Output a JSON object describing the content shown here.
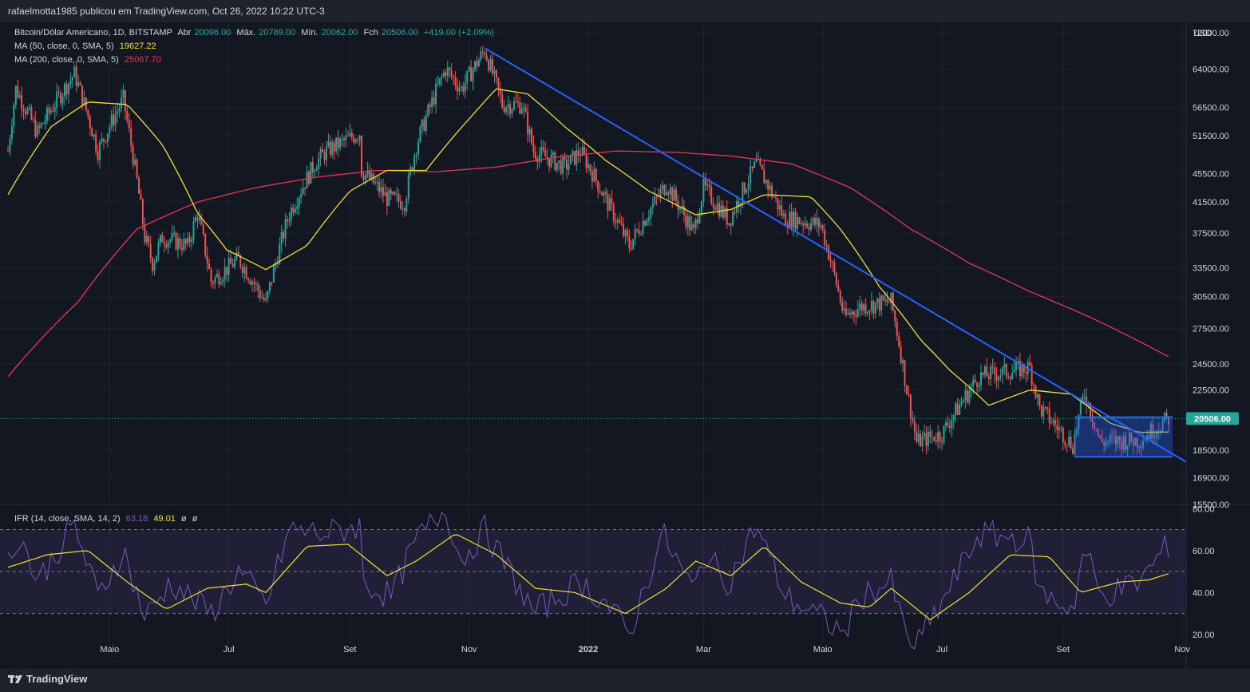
{
  "header": {
    "publisher": "rafaelmotta1985 publicou em TradingView.com, Oct 26, 2022 10:22 UTC-3"
  },
  "legend": {
    "symbol": "Bitcoin/Dólar Americano, 1D, BITSTAMP",
    "open_label": "Abr",
    "open_value": "20096.00",
    "high_label": "Máx.",
    "high_value": "20789.00",
    "low_label": "Mín.",
    "low_value": "20062.00",
    "close_label": "Fch",
    "close_value": "20506.00",
    "change": "+419.00 (+2.09%)",
    "ma50_label": "MA (50, close, 0, SMA, 5)",
    "ma50_value": "19627.22",
    "ma200_label": "MA (200, close, 0, SMA, 5)",
    "ma200_value": "25067.70",
    "rsi_label": "IFR (14, close, SMA, 14, 2)",
    "rsi_value": "63.18",
    "rsi_ma_value": "49.01",
    "rsi_extra1": "ø",
    "rsi_extra2": "ø"
  },
  "footer": {
    "brand": "TradingView"
  },
  "colors": {
    "up": "#26a69a",
    "down": "#ef5350",
    "ma50": "#f0e130",
    "ma200": "#e8384f",
    "trendline": "#2962ff",
    "rsi": "#7e57c2",
    "rsi_ma": "#f0e130",
    "price_tag": "#26a69a"
  },
  "chart_data": [
    {
      "type": "candlestick",
      "title": "Bitcoin/Dólar Americano, 1D, BITSTAMP",
      "y_unit": "USD",
      "y_scale": "log",
      "ylim": [
        15500,
        74500
      ],
      "y_ticks": [
        "72000.00",
        "64000.00",
        "56500.00",
        "51500.00",
        "45500.00",
        "41500.00",
        "37500.00",
        "33500.00",
        "30500.00",
        "27500.00",
        "24500.00",
        "22500.00",
        "18500.00",
        "16900.00",
        "15500.00"
      ],
      "x_ticks": [
        "Maio",
        "Jul",
        "Set",
        "Nov",
        "2022",
        "Mar",
        "Maio",
        "Jul",
        "Set",
        "Nov"
      ],
      "x_tick_dates": [
        "2021-05-01",
        "2021-07-01",
        "2021-09-01",
        "2021-11-01",
        "2022-01-01",
        "2022-03-01",
        "2022-05-01",
        "2022-07-01",
        "2022-09-01",
        "2022-11-01"
      ],
      "x_range": [
        "2021-03-10",
        "2022-11-03"
      ],
      "last_price": "20506.00",
      "price_keypoints": [
        [
          "2021-03-10",
          49000
        ],
        [
          "2021-03-14",
          60000
        ],
        [
          "2021-03-25",
          52000
        ],
        [
          "2021-04-13",
          63000
        ],
        [
          "2021-04-25",
          49000
        ],
        [
          "2021-05-08",
          58000
        ],
        [
          "2021-05-12",
          50000
        ],
        [
          "2021-05-19",
          37000
        ],
        [
          "2021-05-23",
          34000
        ],
        [
          "2021-05-28",
          37000
        ],
        [
          "2021-06-10",
          36000
        ],
        [
          "2021-06-15",
          40000
        ],
        [
          "2021-06-22",
          32000
        ],
        [
          "2021-07-06",
          34500
        ],
        [
          "2021-07-20",
          29800
        ],
        [
          "2021-08-01",
          40000
        ],
        [
          "2021-08-14",
          47000
        ],
        [
          "2021-08-20",
          49000
        ],
        [
          "2021-09-06",
          52000
        ],
        [
          "2021-09-07",
          46000
        ],
        [
          "2021-09-20",
          42000
        ],
        [
          "2021-09-29",
          41500
        ],
        [
          "2021-10-05",
          50000
        ],
        [
          "2021-10-20",
          64000
        ],
        [
          "2021-10-28",
          60000
        ],
        [
          "2021-11-09",
          68000
        ],
        [
          "2021-11-18",
          57000
        ],
        [
          "2021-11-28",
          57000
        ],
        [
          "2021-12-04",
          49000
        ],
        [
          "2021-12-20",
          46500
        ],
        [
          "2021-12-28",
          49000
        ],
        [
          "2022-01-10",
          41800
        ],
        [
          "2022-01-22",
          36000
        ],
        [
          "2022-02-10",
          44000
        ],
        [
          "2022-02-24",
          37500
        ],
        [
          "2022-03-01",
          43500
        ],
        [
          "2022-03-14",
          39000
        ],
        [
          "2022-03-28",
          47000
        ],
        [
          "2022-04-11",
          39500
        ],
        [
          "2022-04-30",
          38500
        ],
        [
          "2022-05-12",
          28500
        ],
        [
          "2022-05-20",
          29500
        ],
        [
          "2022-06-05",
          30000
        ],
        [
          "2022-06-13",
          22500
        ],
        [
          "2022-06-18",
          19000
        ],
        [
          "2022-07-01",
          19500
        ],
        [
          "2022-07-20",
          23500
        ],
        [
          "2022-08-15",
          24200
        ],
        [
          "2022-08-20",
          21200
        ],
        [
          "2022-09-06",
          18800
        ],
        [
          "2022-09-12",
          22300
        ],
        [
          "2022-09-20",
          19000
        ],
        [
          "2022-10-10",
          19100
        ],
        [
          "2022-10-25",
          20506
        ]
      ],
      "ma50_keypoints": [
        [
          "2021-03-10",
          42500
        ],
        [
          "2021-04-01",
          53000
        ],
        [
          "2021-04-20",
          57500
        ],
        [
          "2021-05-10",
          57000
        ],
        [
          "2021-05-28",
          50000
        ],
        [
          "2021-06-15",
          40000
        ],
        [
          "2021-06-30",
          35500
        ],
        [
          "2021-07-20",
          33300
        ],
        [
          "2021-08-10",
          36000
        ],
        [
          "2021-09-01",
          43000
        ],
        [
          "2021-09-20",
          46000
        ],
        [
          "2021-10-10",
          46000
        ],
        [
          "2021-10-31",
          54000
        ],
        [
          "2021-11-15",
          60000
        ],
        [
          "2021-12-01",
          59000
        ],
        [
          "2021-12-20",
          53000
        ],
        [
          "2022-01-10",
          47500
        ],
        [
          "2022-02-01",
          43000
        ],
        [
          "2022-02-25",
          39800
        ],
        [
          "2022-03-15",
          40500
        ],
        [
          "2022-04-01",
          42500
        ],
        [
          "2022-04-25",
          42200
        ],
        [
          "2022-05-10",
          38000
        ],
        [
          "2022-05-30",
          31500
        ],
        [
          "2022-06-20",
          26500
        ],
        [
          "2022-07-05",
          24000
        ],
        [
          "2022-07-25",
          21400
        ],
        [
          "2022-08-15",
          22500
        ],
        [
          "2022-09-05",
          22200
        ],
        [
          "2022-09-25",
          20200
        ],
        [
          "2022-10-10",
          19600
        ],
        [
          "2022-10-25",
          19627
        ]
      ],
      "ma200_keypoints": [
        [
          "2021-03-10",
          23500
        ],
        [
          "2021-04-15",
          30000
        ],
        [
          "2021-05-15",
          38000
        ],
        [
          "2021-06-15",
          41500
        ],
        [
          "2021-07-15",
          43500
        ],
        [
          "2021-08-15",
          45000
        ],
        [
          "2021-09-15",
          46000
        ],
        [
          "2021-10-15",
          45800
        ],
        [
          "2021-11-15",
          46500
        ],
        [
          "2021-12-15",
          48000
        ],
        [
          "2022-01-15",
          49000
        ],
        [
          "2022-02-15",
          48800
        ],
        [
          "2022-03-15",
          48200
        ],
        [
          "2022-04-15",
          47000
        ],
        [
          "2022-05-15",
          43500
        ],
        [
          "2022-06-15",
          38000
        ],
        [
          "2022-07-15",
          34000
        ],
        [
          "2022-08-15",
          31000
        ],
        [
          "2022-09-15",
          28500
        ],
        [
          "2022-10-25",
          25068
        ]
      ],
      "trendline": [
        [
          "2021-11-09",
          68500
        ],
        [
          "2022-11-03",
          17800
        ]
      ],
      "range_box": {
        "from": "2022-09-07",
        "to": "2022-10-27",
        "high": 20600,
        "low": 18100
      }
    },
    {
      "type": "line",
      "title": "IFR (14, close, SMA, 14, 2)",
      "ylim": [
        15,
        82
      ],
      "y_ticks": [
        "80.00",
        "60.00",
        "40.00",
        "20.00"
      ],
      "bands": [
        70,
        50,
        30
      ],
      "rsi_keypoints": [
        [
          "2021-03-10",
          55
        ],
        [
          "2021-03-16",
          68
        ],
        [
          "2021-03-25",
          45
        ],
        [
          "2021-04-13",
          72
        ],
        [
          "2021-04-25",
          38
        ],
        [
          "2021-05-08",
          60
        ],
        [
          "2021-05-19",
          28
        ],
        [
          "2021-05-25",
          35
        ],
        [
          "2021-06-01",
          45
        ],
        [
          "2021-06-22",
          30
        ],
        [
          "2021-07-06",
          50
        ],
        [
          "2021-07-20",
          34
        ],
        [
          "2021-08-01",
          70
        ],
        [
          "2021-08-20",
          68
        ],
        [
          "2021-09-06",
          72
        ],
        [
          "2021-09-07",
          45
        ],
        [
          "2021-09-22",
          38
        ],
        [
          "2021-10-05",
          65
        ],
        [
          "2021-10-20",
          80
        ],
        [
          "2021-10-28",
          55
        ],
        [
          "2021-11-09",
          70
        ],
        [
          "2021-11-25",
          45
        ],
        [
          "2021-12-04",
          30
        ],
        [
          "2021-12-28",
          45
        ],
        [
          "2022-01-10",
          35
        ],
        [
          "2022-01-22",
          20
        ],
        [
          "2022-02-08",
          68
        ],
        [
          "2022-02-24",
          40
        ],
        [
          "2022-03-01",
          58
        ],
        [
          "2022-03-14",
          45
        ],
        [
          "2022-03-28",
          72
        ],
        [
          "2022-04-12",
          38
        ],
        [
          "2022-04-30",
          28
        ],
        [
          "2022-05-12",
          20
        ],
        [
          "2022-05-20",
          38
        ],
        [
          "2022-06-05",
          45
        ],
        [
          "2022-06-13",
          18
        ],
        [
          "2022-06-18",
          15
        ],
        [
          "2022-07-01",
          35
        ],
        [
          "2022-07-20",
          68
        ],
        [
          "2022-08-15",
          65
        ],
        [
          "2022-08-20",
          40
        ],
        [
          "2022-09-06",
          32
        ],
        [
          "2022-09-12",
          62
        ],
        [
          "2022-09-20",
          38
        ],
        [
          "2022-10-10",
          45
        ],
        [
          "2022-10-25",
          63
        ]
      ],
      "rsi_ma_keypoints": [
        [
          "2021-03-10",
          52
        ],
        [
          "2021-03-30",
          58
        ],
        [
          "2021-04-20",
          60
        ],
        [
          "2021-05-10",
          45
        ],
        [
          "2021-05-30",
          32
        ],
        [
          "2021-06-20",
          42
        ],
        [
          "2021-07-10",
          44
        ],
        [
          "2021-07-20",
          40
        ],
        [
          "2021-08-10",
          62
        ],
        [
          "2021-08-31",
          63
        ],
        [
          "2021-09-20",
          48
        ],
        [
          "2021-10-05",
          55
        ],
        [
          "2021-10-25",
          68
        ],
        [
          "2021-11-15",
          58
        ],
        [
          "2021-12-05",
          42
        ],
        [
          "2021-12-25",
          40
        ],
        [
          "2022-01-20",
          30
        ],
        [
          "2022-02-10",
          42
        ],
        [
          "2022-02-25",
          55
        ],
        [
          "2022-03-15",
          48
        ],
        [
          "2022-04-01",
          62
        ],
        [
          "2022-04-20",
          45
        ],
        [
          "2022-05-10",
          35
        ],
        [
          "2022-05-25",
          33
        ],
        [
          "2022-06-05",
          42
        ],
        [
          "2022-06-25",
          27
        ],
        [
          "2022-07-15",
          40
        ],
        [
          "2022-08-05",
          58
        ],
        [
          "2022-08-25",
          57
        ],
        [
          "2022-09-10",
          40
        ],
        [
          "2022-09-30",
          45
        ],
        [
          "2022-10-15",
          46
        ],
        [
          "2022-10-25",
          49
        ]
      ]
    }
  ]
}
